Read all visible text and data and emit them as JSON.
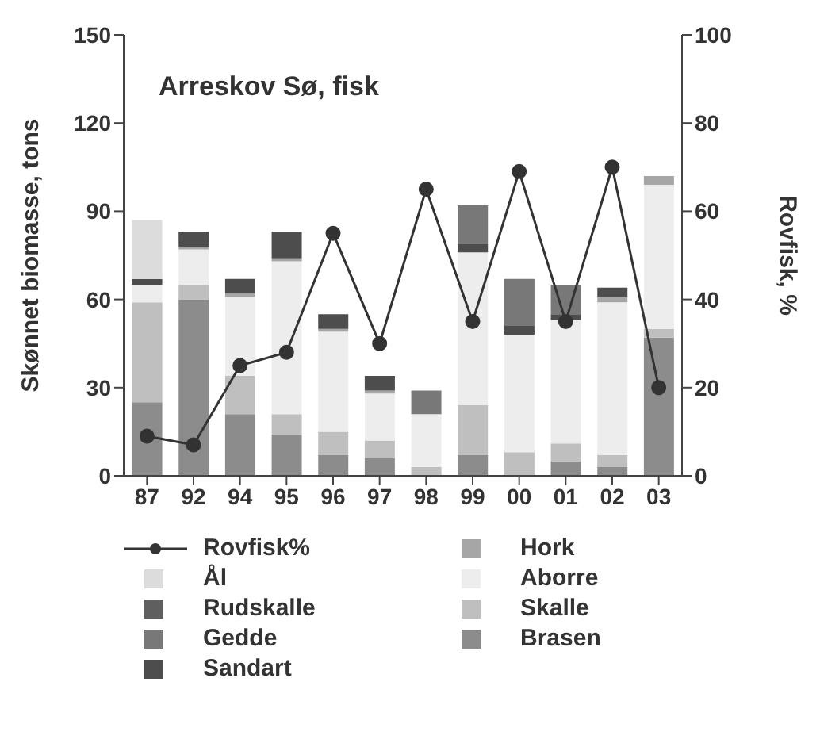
{
  "chart_data": {
    "type": "bar",
    "title": "Arreskov Sø, fisk",
    "ylabel": "Skønnet biomasse, tons",
    "y2label": "Rovfisk, %",
    "categories": [
      "87",
      "92",
      "94",
      "95",
      "96",
      "97",
      "98",
      "99",
      "00",
      "01",
      "02",
      "03"
    ],
    "stacked": true,
    "legend": "bottom",
    "marker": "circle",
    "ylim": [
      0,
      150
    ],
    "yticks": [
      0,
      30,
      60,
      90,
      120,
      150
    ],
    "y2lim": [
      0,
      100
    ],
    "y2ticks": [
      0,
      20,
      40,
      60,
      80,
      100
    ],
    "series": [
      {
        "name": "Brasen",
        "color": "#8c8c8c",
        "values": [
          25,
          60,
          21,
          14,
          7,
          6,
          0,
          7,
          0,
          5,
          3,
          47
        ]
      },
      {
        "name": "Skalle",
        "color": "#bfbfbf",
        "values": [
          34,
          5,
          13,
          7,
          8,
          6,
          3,
          17,
          8,
          6,
          4,
          3
        ]
      },
      {
        "name": "Aborre",
        "color": "#ededed",
        "values": [
          6,
          12,
          27,
          52,
          34,
          16,
          18,
          52,
          40,
          42,
          52,
          49
        ]
      },
      {
        "name": "Hork",
        "color": "#a6a6a6",
        "values": [
          0,
          1,
          1,
          1,
          1,
          1,
          0,
          0,
          0,
          0,
          2,
          3
        ]
      },
      {
        "name": "Sandart",
        "color": "#4d4d4d",
        "values": [
          2,
          5,
          5,
          9,
          5,
          5,
          0,
          3,
          3,
          2,
          3,
          0
        ]
      },
      {
        "name": "Gedde",
        "color": "#787878",
        "values": [
          0,
          0,
          0,
          0,
          0,
          0,
          8,
          13,
          16,
          10,
          0,
          0
        ]
      },
      {
        "name": "Rudskalle",
        "color": "#5f5f5f",
        "values": [
          0,
          0,
          0,
          0,
          0,
          0,
          0,
          0,
          0,
          0,
          0,
          0
        ]
      },
      {
        "name": "Ål",
        "color": "#dcdcdc",
        "values": [
          20,
          0,
          0,
          0,
          0,
          0,
          0,
          0,
          0,
          0,
          0,
          0
        ]
      },
      {
        "name": "Rovfisk%",
        "type": "line",
        "axis": "y2",
        "color": "#333333",
        "values": [
          9,
          7,
          25,
          28,
          55,
          30,
          65,
          35,
          69,
          35,
          70,
          20
        ]
      }
    ]
  }
}
